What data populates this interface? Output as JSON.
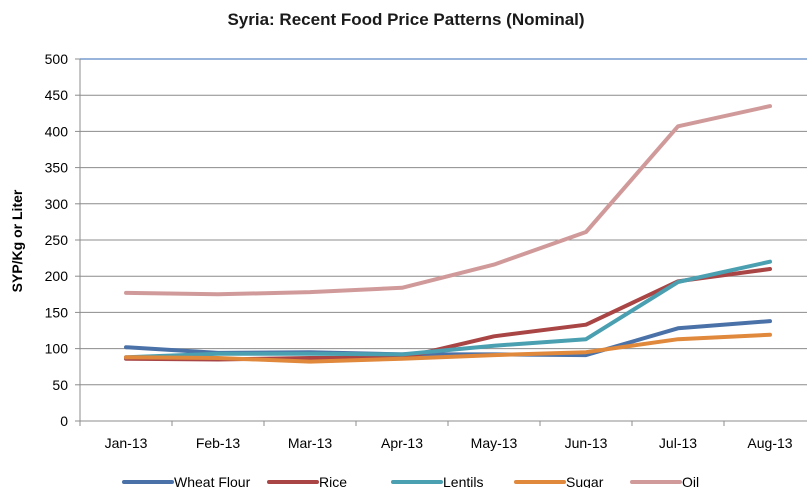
{
  "chart_data": {
    "type": "line",
    "title": "Syria: Recent Food Price Patterns (Nominal)",
    "xlabel": "",
    "ylabel": "SYP/Kg or Liter",
    "categories": [
      "Jan-13",
      "Feb-13",
      "Mar-13",
      "Apr-13",
      "May-13",
      "Jun-13",
      "Jul-13",
      "Aug-13"
    ],
    "ylim": [
      0,
      500
    ],
    "yticks": [
      0,
      50,
      100,
      150,
      200,
      250,
      300,
      350,
      400,
      450,
      500
    ],
    "grid": true,
    "legend_position": "bottom",
    "series": [
      {
        "name": "Wheat Flour",
        "color": "#4a72a8",
        "values": [
          102,
          94,
          95,
          92,
          92,
          91,
          128,
          138
        ]
      },
      {
        "name": "Rice",
        "color": "#a94545",
        "values": [
          86,
          85,
          87,
          87,
          117,
          133,
          193,
          210
        ]
      },
      {
        "name": "Lentils",
        "color": "#4a9fb0",
        "values": [
          88,
          93,
          93,
          92,
          104,
          113,
          192,
          220
        ]
      },
      {
        "name": "Sugar",
        "color": "#e0883c",
        "values": [
          88,
          87,
          82,
          86,
          91,
          95,
          113,
          119
        ]
      },
      {
        "name": "Oil",
        "color": "#d19a9a",
        "values": [
          177,
          175,
          178,
          184,
          216,
          261,
          407,
          435
        ]
      }
    ]
  }
}
